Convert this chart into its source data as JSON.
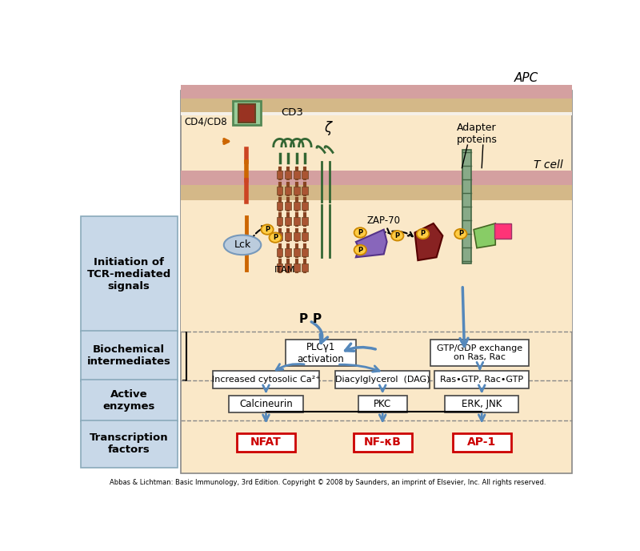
{
  "bg_color": "#FAE8C8",
  "white_bg": "#FFFFFF",
  "left_panel_color": "#C8D8E8",
  "arrow_color": "#5588BB",
  "footer_text": "Abbas & Lichtman: Basic Immunology, 3rd Edition. Copyright © 2008 by Saunders, an imprint of Elsevier, Inc. All rights reserved.",
  "left_labels": [
    {
      "text": "Initiation of\nTCR-mediated\nsignals",
      "yb": 0.355,
      "yt": 0.96
    },
    {
      "text": "Biochemical\nintermediates",
      "yb": 0.235,
      "yt": 0.355
    },
    {
      "text": "Active\nenzymes",
      "yb": 0.13,
      "yt": 0.235
    },
    {
      "text": "Transcription\nfactors",
      "yb": 0.04,
      "yt": 0.13
    }
  ]
}
